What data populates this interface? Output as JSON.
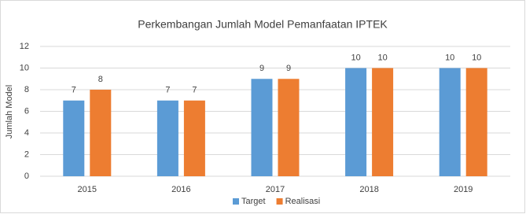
{
  "chart_data": {
    "type": "bar",
    "title": "Perkembangan Jumlah Model Pemanfaatan IPTEK",
    "y_label": "Jumlah Model",
    "categories": [
      "2015",
      "2016",
      "2017",
      "2018",
      "2019"
    ],
    "series": [
      {
        "name": "Target",
        "color": "#5b9bd5",
        "values": [
          7,
          7,
          9,
          10,
          10
        ]
      },
      {
        "name": "Realisasi",
        "color": "#ed7d31",
        "values": [
          8,
          7,
          9,
          10,
          10
        ]
      }
    ],
    "ylim": [
      0,
      12
    ],
    "yticks": [
      0,
      2,
      4,
      6,
      8,
      10,
      12
    ],
    "grid": true,
    "legend": "bottom",
    "data_labels": true
  }
}
